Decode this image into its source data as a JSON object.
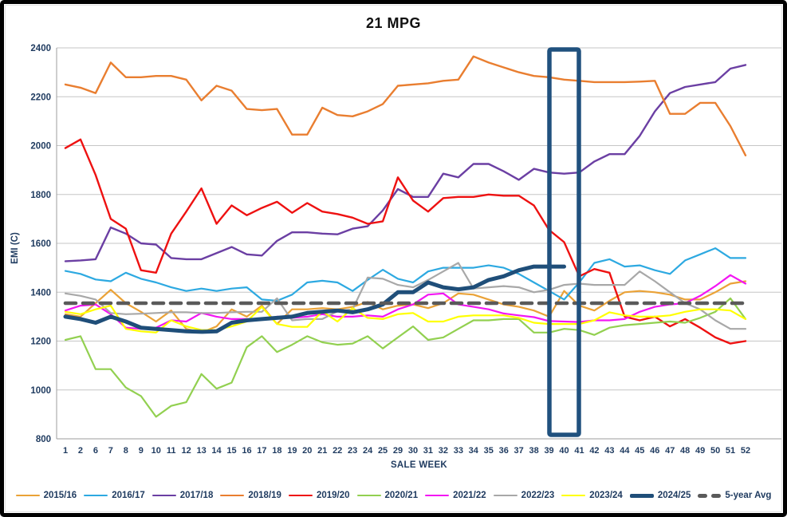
{
  "title": "21 MPG",
  "axes": {
    "x_title": "SALE WEEK",
    "y_title": "EMI (C)",
    "y_ticks": [
      "800",
      "1000",
      "1200",
      "1400",
      "1600",
      "1800",
      "2000",
      "2200",
      "2400"
    ]
  },
  "styles": {
    "grid_color": "#c6c6c6",
    "axis_color": "#9e9e9e",
    "tick_text_color": "#1e3a5f",
    "highlight_box_color": "#20517e"
  },
  "chart_data": {
    "type": "line",
    "title": "21 MPG",
    "xlabel": "SALE WEEK",
    "ylabel": "EMI (C)",
    "ylim": [
      800,
      2400
    ],
    "y_step": 200,
    "grid": true,
    "legend_position": "bottom",
    "annotation_box": {
      "category": "40",
      "note": "highlight rectangle around sale week 40",
      "color": "#20517e"
    },
    "categories": [
      "1",
      "2",
      "6",
      "7",
      "8",
      "9",
      "10",
      "11",
      "12",
      "13",
      "14",
      "15",
      "16",
      "17",
      "18",
      "19",
      "20",
      "21",
      "22",
      "23",
      "24",
      "25",
      "29",
      "30",
      "31",
      "32",
      "33",
      "34",
      "35",
      "36",
      "37",
      "38",
      "39",
      "40",
      "41",
      "42",
      "43",
      "44",
      "45",
      "46",
      "47",
      "48",
      "49",
      "50",
      "51",
      "52"
    ],
    "series": [
      {
        "name": "2015/16",
        "color": "#eaa237",
        "width": 2.2,
        "values": [
          1310,
          1300,
          1355,
          1410,
          1355,
          1320,
          1280,
          1325,
          1250,
          1235,
          1260,
          1330,
          1300,
          1345,
          1270,
          1330,
          1330,
          1335,
          1330,
          1340,
          1360,
          1330,
          1345,
          1350,
          1335,
          1355,
          1395,
          1390,
          1370,
          1350,
          1340,
          1325,
          1300,
          1405,
          1345,
          1325,
          1365,
          1400,
          1405,
          1400,
          1390,
          1370,
          1370,
          1400,
          1435,
          1445
        ]
      },
      {
        "name": "2016/17",
        "color": "#2da9e1",
        "width": 2.2,
        "values": [
          1487,
          1475,
          1452,
          1445,
          1480,
          1455,
          1440,
          1420,
          1405,
          1415,
          1405,
          1415,
          1420,
          1370,
          1365,
          1390,
          1440,
          1447,
          1440,
          1405,
          1450,
          1492,
          1455,
          1440,
          1485,
          1500,
          1500,
          1500,
          1510,
          1500,
          1475,
          1440,
          1405,
          1370,
          1440,
          1520,
          1535,
          1505,
          1510,
          1490,
          1475,
          1530,
          1555,
          1580,
          1540,
          1540
        ]
      },
      {
        "name": "2017/18",
        "color": "#6b3fa3",
        "width": 2.4,
        "values": [
          1527,
          1530,
          1535,
          1665,
          1640,
          1600,
          1595,
          1540,
          1535,
          1535,
          1560,
          1585,
          1555,
          1550,
          1610,
          1645,
          1645,
          1640,
          1637,
          1660,
          1670,
          1735,
          1822,
          1790,
          1790,
          1885,
          1870,
          1925,
          1925,
          1895,
          1860,
          1905,
          1890,
          1885,
          1890,
          1935,
          1965,
          1965,
          2040,
          2140,
          2215,
          2240,
          2250,
          2260,
          2315,
          2330
        ]
      },
      {
        "name": "2018/19",
        "color": "#e97e30",
        "width": 2.4,
        "values": [
          2250,
          2237,
          2215,
          2340,
          2280,
          2280,
          2285,
          2285,
          2270,
          2185,
          2245,
          2225,
          2150,
          2145,
          2150,
          2045,
          2045,
          2155,
          2125,
          2120,
          2140,
          2170,
          2245,
          2250,
          2255,
          2265,
          2270,
          2365,
          2340,
          2320,
          2300,
          2285,
          2280,
          2270,
          2265,
          2260,
          2260,
          2260,
          2262,
          2265,
          2130,
          2130,
          2175,
          2175,
          2080,
          1960
        ]
      },
      {
        "name": "2019/20",
        "color": "#ee1111",
        "width": 2.4,
        "values": [
          1990,
          2025,
          1880,
          1700,
          1660,
          1490,
          1480,
          1640,
          1730,
          1825,
          1680,
          1755,
          1715,
          1745,
          1770,
          1725,
          1765,
          1730,
          1720,
          1705,
          1680,
          1690,
          1870,
          1775,
          1730,
          1785,
          1790,
          1790,
          1800,
          1795,
          1795,
          1755,
          1655,
          1605,
          1465,
          1495,
          1480,
          1300,
          1285,
          1300,
          1260,
          1290,
          1255,
          1215,
          1190,
          1200
        ]
      },
      {
        "name": "2020/21",
        "color": "#92d050",
        "width": 2.2,
        "values": [
          1205,
          1220,
          1085,
          1085,
          1010,
          975,
          890,
          935,
          950,
          1065,
          1005,
          1030,
          1175,
          1220,
          1155,
          1185,
          1220,
          1195,
          1185,
          1190,
          1220,
          1170,
          1215,
          1260,
          1205,
          1215,
          1250,
          1285,
          1285,
          1290,
          1290,
          1235,
          1235,
          1250,
          1245,
          1225,
          1255,
          1265,
          1270,
          1275,
          1280,
          1275,
          1295,
          1320,
          1375,
          1290
        ]
      },
      {
        "name": "2021/22",
        "color": "#f316f3",
        "width": 2.2,
        "values": [
          1325,
          1345,
          1350,
          1310,
          1255,
          1250,
          1255,
          1285,
          1280,
          1315,
          1300,
          1290,
          1290,
          1288,
          1300,
          1295,
          1300,
          1310,
          1300,
          1300,
          1305,
          1300,
          1330,
          1350,
          1390,
          1395,
          1350,
          1340,
          1330,
          1313,
          1305,
          1298,
          1282,
          1280,
          1278,
          1285,
          1285,
          1290,
          1320,
          1340,
          1350,
          1355,
          1385,
          1425,
          1470,
          1435
        ]
      },
      {
        "name": "2022/23",
        "color": "#a8a8a8",
        "width": 2.2,
        "values": [
          1395,
          1385,
          1370,
          1315,
          1310,
          1312,
          1315,
          1318,
          1318,
          1315,
          1315,
          1318,
          1320,
          1320,
          1375,
          1285,
          1290,
          1290,
          1322,
          1330,
          1460,
          1455,
          1430,
          1420,
          1450,
          1485,
          1520,
          1415,
          1420,
          1425,
          1420,
          1400,
          1410,
          1430,
          1435,
          1430,
          1430,
          1430,
          1485,
          1445,
          1400,
          1355,
          1330,
          1285,
          1250,
          1250
        ]
      },
      {
        "name": "2023/24",
        "color": "#ffff00",
        "width": 2.2,
        "values": [
          1320,
          1310,
          1330,
          1345,
          1250,
          1240,
          1235,
          1285,
          1260,
          1245,
          1245,
          1260,
          1280,
          1340,
          1270,
          1258,
          1258,
          1322,
          1280,
          1335,
          1295,
          1290,
          1310,
          1315,
          1280,
          1280,
          1300,
          1305,
          1305,
          1305,
          1295,
          1275,
          1270,
          1270,
          1270,
          1285,
          1318,
          1305,
          1300,
          1300,
          1305,
          1320,
          1330,
          1330,
          1325,
          1290
        ]
      },
      {
        "name": "2024/25",
        "color": "#1f4e79",
        "width": 5,
        "values": [
          1300,
          1290,
          1275,
          1300,
          1280,
          1255,
          1250,
          1245,
          1240,
          1238,
          1240,
          1275,
          1285,
          1290,
          1295,
          1300,
          1315,
          1320,
          1325,
          1318,
          1330,
          1350,
          1400,
          1400,
          1440,
          1420,
          1412,
          1420,
          1450,
          1465,
          1490,
          1505,
          1505,
          1505,
          null,
          null,
          null,
          null,
          null,
          null,
          null,
          null,
          null,
          null,
          null,
          null
        ]
      },
      {
        "name": "5-year Avg",
        "color": "#5a5a5a",
        "width": 4.6,
        "dash": "13 9",
        "values": [
          1355,
          1355,
          1355,
          1355,
          1355,
          1355,
          1355,
          1355,
          1355,
          1355,
          1355,
          1355,
          1355,
          1355,
          1355,
          1355,
          1355,
          1355,
          1355,
          1355,
          1355,
          1355,
          1355,
          1355,
          1355,
          1355,
          1355,
          1355,
          1355,
          1355,
          1355,
          1355,
          1355,
          1355,
          1355,
          1355,
          1355,
          1355,
          1355,
          1355,
          1355,
          1355,
          1355,
          1355,
          1355,
          1355
        ]
      }
    ]
  }
}
